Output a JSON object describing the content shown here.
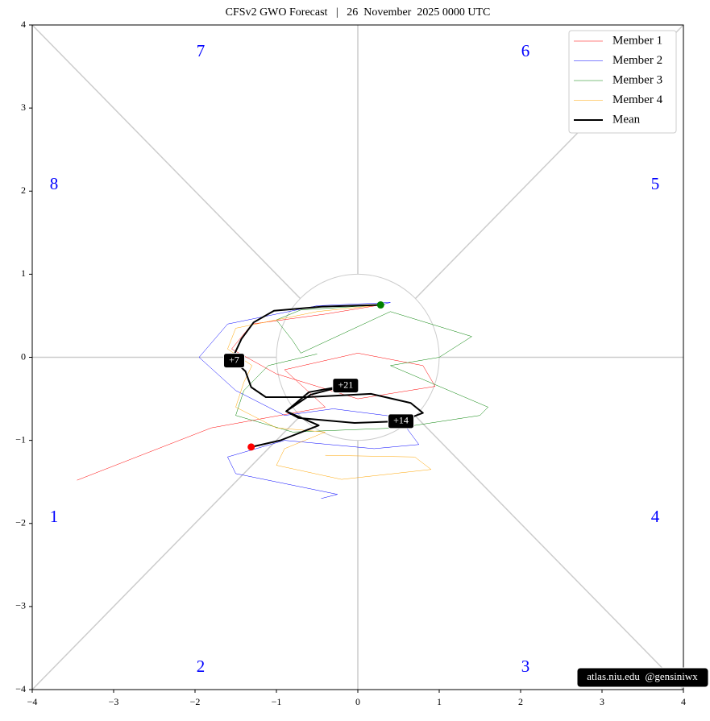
{
  "chart_data": {
    "type": "line",
    "title": "CFSv2 GWO Forecast   |   26  November  2025 0000 UTC",
    "xlim": [
      -4,
      4
    ],
    "ylim": [
      -4,
      4
    ],
    "xticks": [
      {
        "value": -4,
        "label": "−4"
      },
      {
        "value": -3,
        "label": "−3"
      },
      {
        "value": -2,
        "label": "−2"
      },
      {
        "value": -1,
        "label": "−1"
      },
      0,
      1,
      2,
      3,
      4
    ],
    "yticks": [
      {
        "value": -4,
        "label": "−4"
      },
      {
        "value": -3,
        "label": "−3"
      },
      {
        "value": -2,
        "label": "−2"
      },
      {
        "value": -1,
        "label": "−1"
      },
      0,
      1,
      2,
      3,
      4
    ],
    "legend": "upper right",
    "phase_labels": [
      "1",
      "2",
      "3",
      "4",
      "5",
      "6",
      "7",
      "8"
    ],
    "day_labels": [
      "+7",
      "+14",
      "+21"
    ],
    "credit": "atlas.niu.edu  @gensiniwx",
    "series": [
      {
        "name": "Member 1",
        "color": "#ff0000",
        "width": 0.5,
        "x": [
          0.28,
          -0.4,
          -1.3,
          -1.55,
          -1.0,
          0.0,
          0.95,
          0.8,
          0.0,
          -0.9,
          -0.4,
          -1.8,
          -3.45
        ],
        "values": [
          0.63,
          0.52,
          0.4,
          0.1,
          -0.2,
          -0.5,
          -0.35,
          -0.1,
          0.05,
          -0.15,
          -0.6,
          -0.85,
          -1.48
        ]
      },
      {
        "name": "Member 2",
        "color": "#0000ff",
        "width": 0.5,
        "x": [
          0.28,
          0.4,
          -0.5,
          -1.6,
          -1.95,
          -1.5,
          -0.9,
          -0.3,
          0.5,
          0.75,
          0.2,
          -0.9,
          -1.6,
          -1.5,
          -0.5,
          -0.25,
          -0.45
        ],
        "values": [
          0.63,
          0.66,
          0.62,
          0.4,
          0.0,
          -0.4,
          -0.7,
          -0.62,
          -0.72,
          -1.05,
          -1.1,
          -1.0,
          -1.2,
          -1.4,
          -1.6,
          -1.65,
          -1.7
        ]
      },
      {
        "name": "Member 3",
        "color": "#008000",
        "width": 0.5,
        "x": [
          0.28,
          -0.7,
          -1.0,
          -0.8,
          -0.7,
          0.4,
          1.4,
          1.0,
          0.4,
          1.6,
          1.5,
          0.5,
          -0.8,
          -1.5,
          -1.4,
          -1.1,
          -0.5
        ],
        "values": [
          0.63,
          0.57,
          0.45,
          0.2,
          0.05,
          0.55,
          0.25,
          0.0,
          -0.1,
          -0.6,
          -0.7,
          -0.85,
          -0.9,
          -0.7,
          -0.4,
          -0.1,
          0.04
        ]
      },
      {
        "name": "Member 4",
        "color": "#ffa500",
        "width": 0.5,
        "x": [
          0.28,
          -0.5,
          -1.5,
          -1.6,
          -1.3,
          -1.4,
          -1.5,
          -1.0,
          -0.4,
          -0.9,
          -1.0,
          -0.2,
          0.9,
          0.7,
          -0.4
        ],
        "values": [
          0.63,
          0.55,
          0.35,
          0.1,
          -0.1,
          -0.3,
          -0.6,
          -0.85,
          -0.9,
          -1.1,
          -1.3,
          -1.47,
          -1.35,
          -1.2,
          -1.18
        ]
      },
      {
        "name": "Mean",
        "color": "#000000",
        "width": 2,
        "x": [
          0.28,
          -0.44,
          -1.03,
          -1.28,
          -1.43,
          -1.52,
          -1.52,
          -1.38,
          -1.31,
          -1.13,
          -0.63,
          0.16,
          0.65,
          0.8,
          0.53,
          -0.04,
          -0.73,
          -0.88,
          -0.6,
          -0.15,
          -0.58,
          -0.88,
          -0.48,
          -0.95,
          -1.31
        ],
        "values": [
          0.63,
          0.61,
          0.56,
          0.42,
          0.22,
          0.03,
          -0.04,
          -0.17,
          -0.36,
          -0.48,
          -0.48,
          -0.44,
          -0.55,
          -0.67,
          -0.77,
          -0.79,
          -0.73,
          -0.65,
          -0.42,
          -0.34,
          -0.45,
          -0.65,
          -0.82,
          -1.0,
          -1.08
        ]
      }
    ]
  }
}
